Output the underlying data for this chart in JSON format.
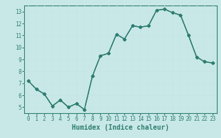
{
  "x": [
    0,
    1,
    2,
    3,
    4,
    5,
    6,
    7,
    8,
    9,
    10,
    11,
    12,
    13,
    14,
    15,
    16,
    17,
    18,
    19,
    20,
    21,
    22,
    23
  ],
  "y": [
    7.2,
    6.5,
    6.1,
    5.1,
    5.6,
    5.0,
    5.3,
    4.8,
    7.6,
    9.3,
    9.5,
    11.1,
    10.7,
    11.8,
    11.7,
    11.8,
    13.1,
    13.2,
    12.9,
    12.7,
    11.0,
    9.2,
    8.8,
    8.7
  ],
  "line_color": "#2e7d6e",
  "marker": "D",
  "markersize": 2.5,
  "linewidth": 1.0,
  "bg_color": "#c8e8e8",
  "grid_color": "#b0d8d8",
  "xlabel": "Humidex (Indice chaleur)",
  "xlim": [
    -0.5,
    23.5
  ],
  "ylim": [
    4.5,
    13.5
  ],
  "yticks": [
    5,
    6,
    7,
    8,
    9,
    10,
    11,
    12,
    13
  ],
  "xticks": [
    0,
    1,
    2,
    3,
    4,
    5,
    6,
    7,
    8,
    9,
    10,
    11,
    12,
    13,
    14,
    15,
    16,
    17,
    18,
    19,
    20,
    21,
    22,
    23
  ],
  "tick_fontsize": 5.5,
  "label_fontsize": 7.0,
  "tick_color": "#2e7d6e",
  "axis_color": "#2e7d6e",
  "grid_white_color": "#d8f0f0"
}
